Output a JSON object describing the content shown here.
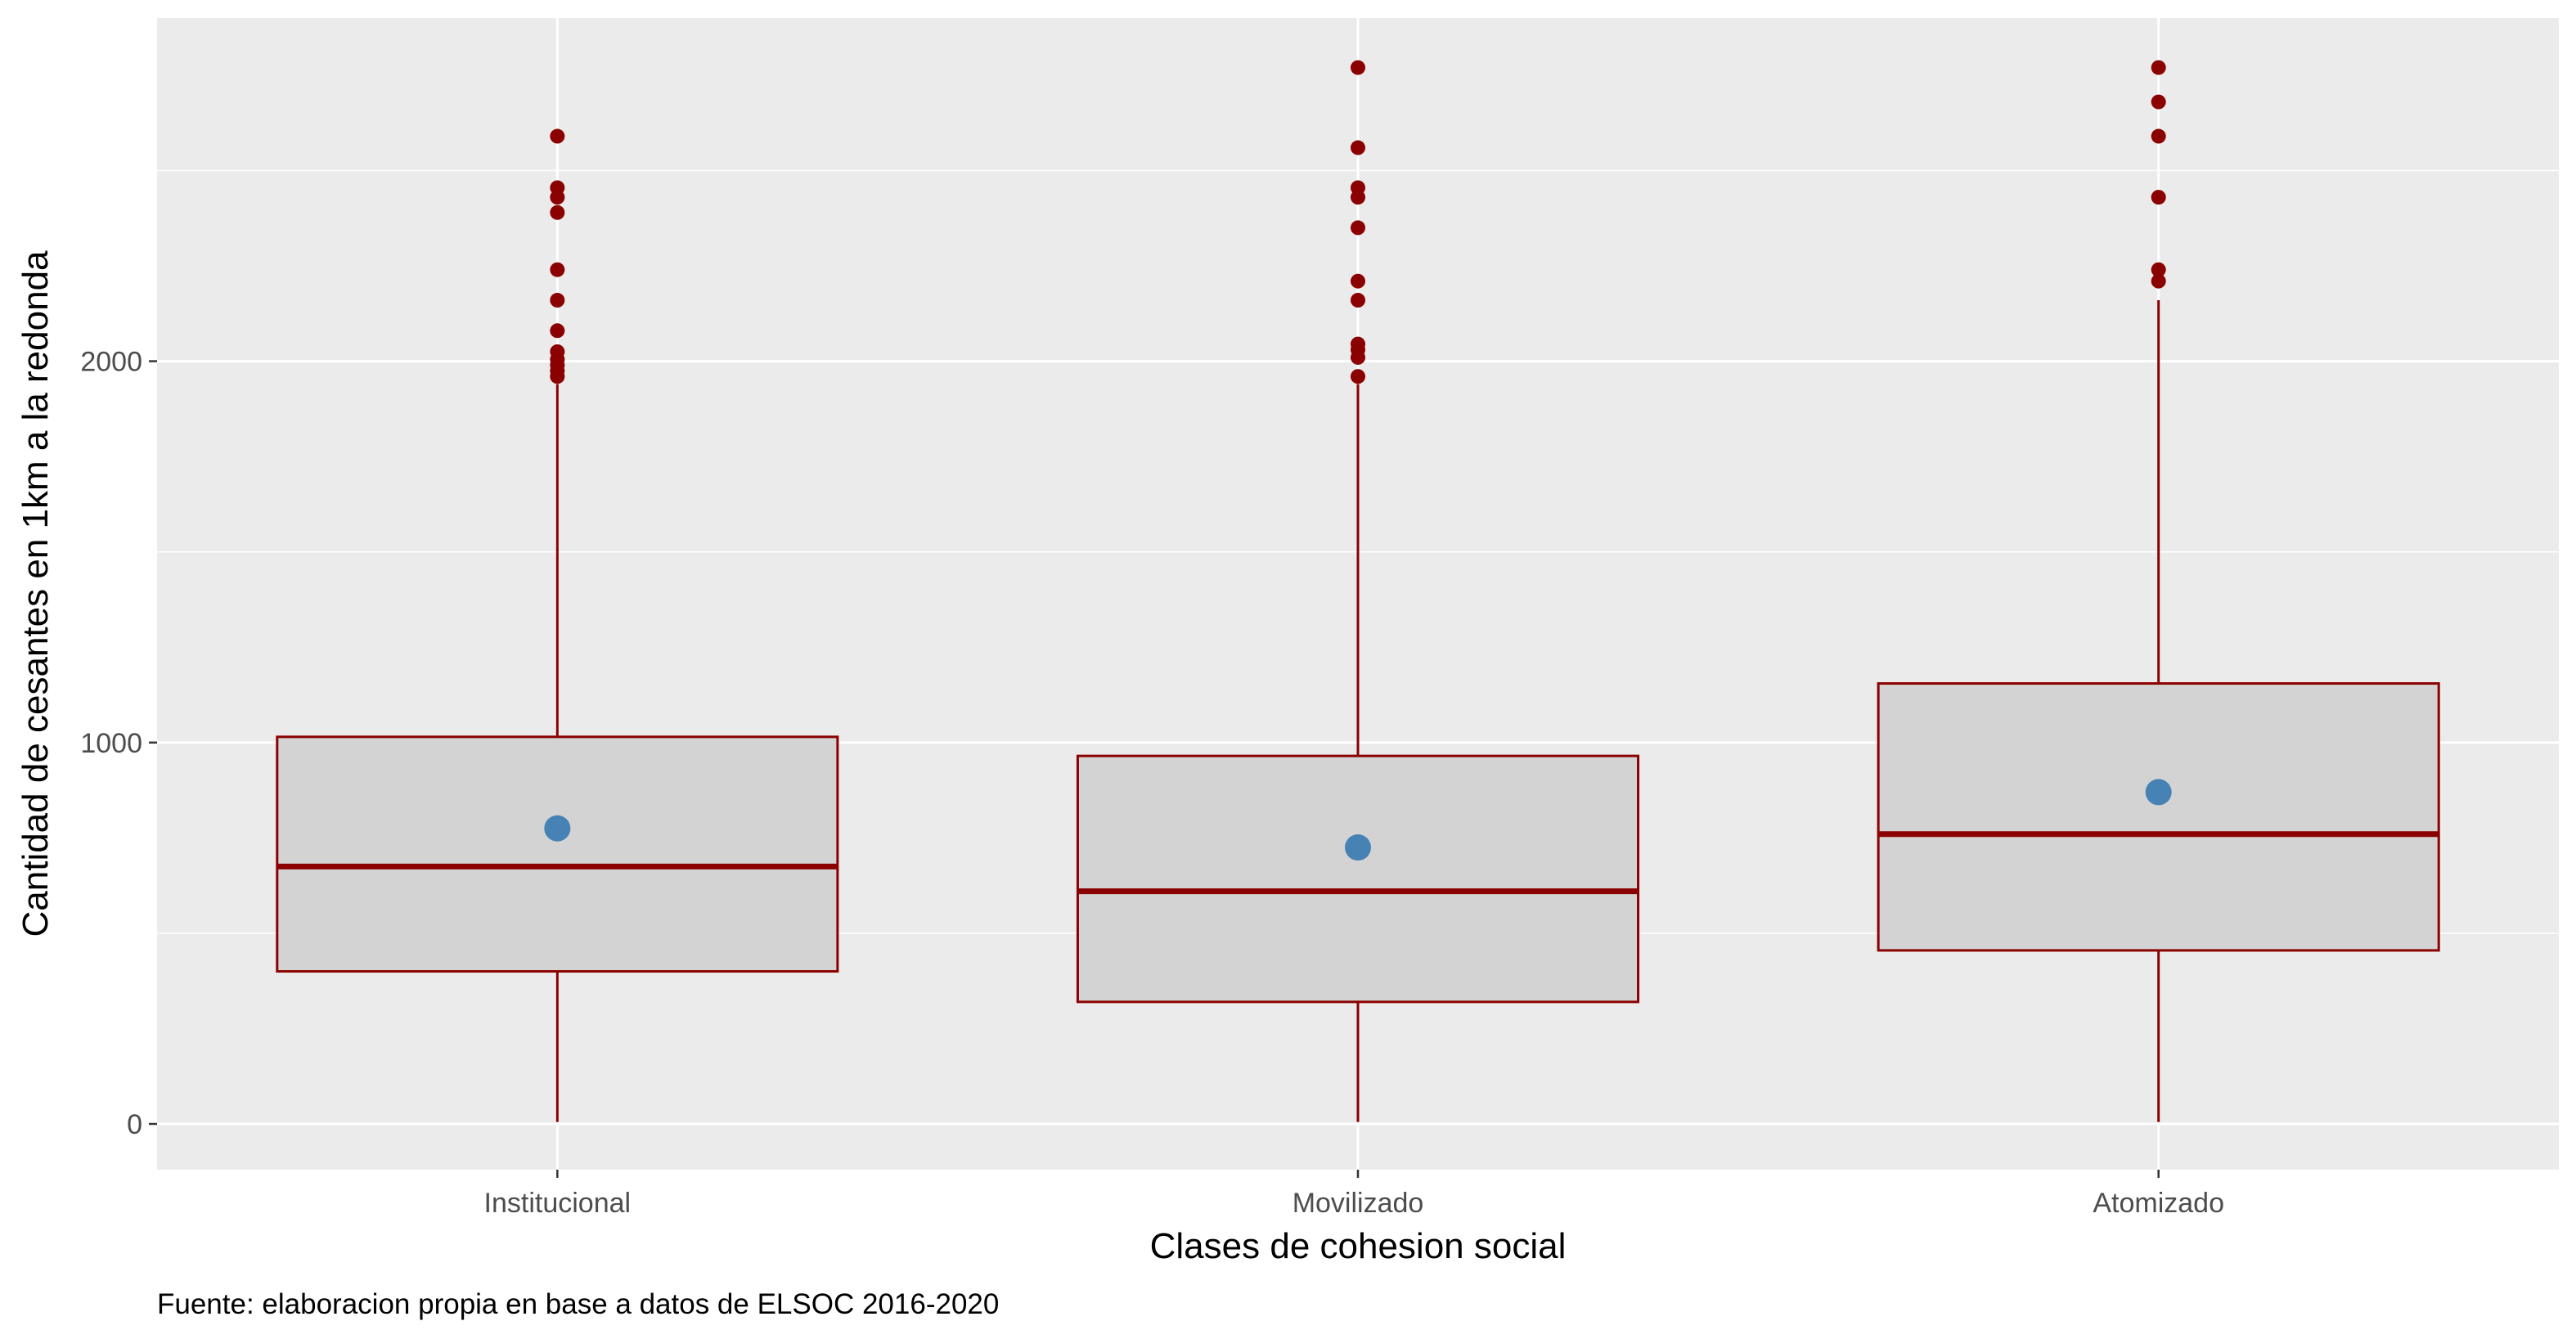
{
  "chart_data": {
    "type": "boxplot",
    "title": "",
    "xlabel": "Clases de cohesion social",
    "ylabel": "Cantidad de cesantes en 1km a la redonda",
    "caption": "Fuente: elaboracion propia en base a datos de ELSOC 2016-2020",
    "categories": [
      "Institucional",
      "Movilizado",
      "Atomizado"
    ],
    "ylim": [
      -120,
      2900
    ],
    "yticks": [
      0,
      1000,
      2000
    ],
    "grid": true,
    "legend": "none",
    "colors": {
      "panel_bg": "#EBEBEB",
      "grid": "#FFFFFF",
      "box_fill": "#D3D3D3",
      "box_line": "#8B0000",
      "outlier": "#8B0000",
      "mean_point": "#4682B4",
      "tick_mark": "#333333"
    },
    "boxes": [
      {
        "category": "Institucional",
        "whisker_low": 5,
        "q1": 400,
        "median": 675,
        "q3": 1015,
        "whisker_high": 1940,
        "mean": 775,
        "outliers": [
          1960,
          1975,
          1990,
          2005,
          2025,
          2080,
          2160,
          2240,
          2390,
          2430,
          2455,
          2590
        ]
      },
      {
        "category": "Movilizado",
        "whisker_low": 5,
        "q1": 320,
        "median": 610,
        "q3": 965,
        "whisker_high": 1940,
        "mean": 725,
        "outliers": [
          1960,
          2010,
          2030,
          2045,
          2160,
          2210,
          2350,
          2430,
          2455,
          2560,
          2770
        ]
      },
      {
        "category": "Atomizado",
        "whisker_low": 5,
        "q1": 455,
        "median": 760,
        "q3": 1155,
        "whisker_high": 2160,
        "mean": 870,
        "outliers": [
          2210,
          2240,
          2430,
          2590,
          2680,
          2770
        ]
      }
    ]
  }
}
